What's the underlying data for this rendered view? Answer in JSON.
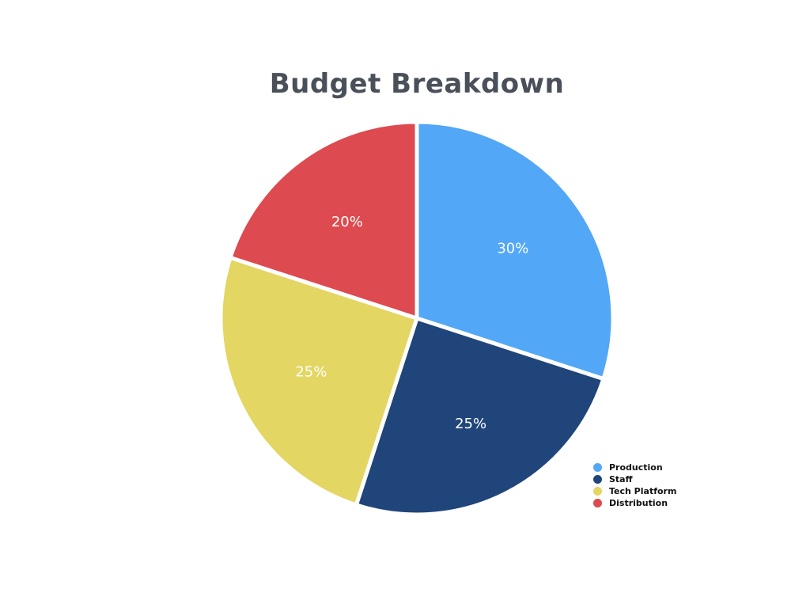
{
  "chart_data": {
    "type": "pie",
    "title": "Budget Breakdown",
    "categories": [
      "Production",
      "Staff",
      "Tech Platform",
      "Distribution"
    ],
    "values": [
      30,
      25,
      25,
      20
    ],
    "labels": [
      "30%",
      "25%",
      "25%",
      "20%"
    ],
    "colors": [
      "#52a7f7",
      "#1f457a",
      "#e3d662",
      "#dd4a4f"
    ],
    "start": "12 o'clock",
    "direction": "clockwise",
    "legend_position": "bottom-right"
  }
}
